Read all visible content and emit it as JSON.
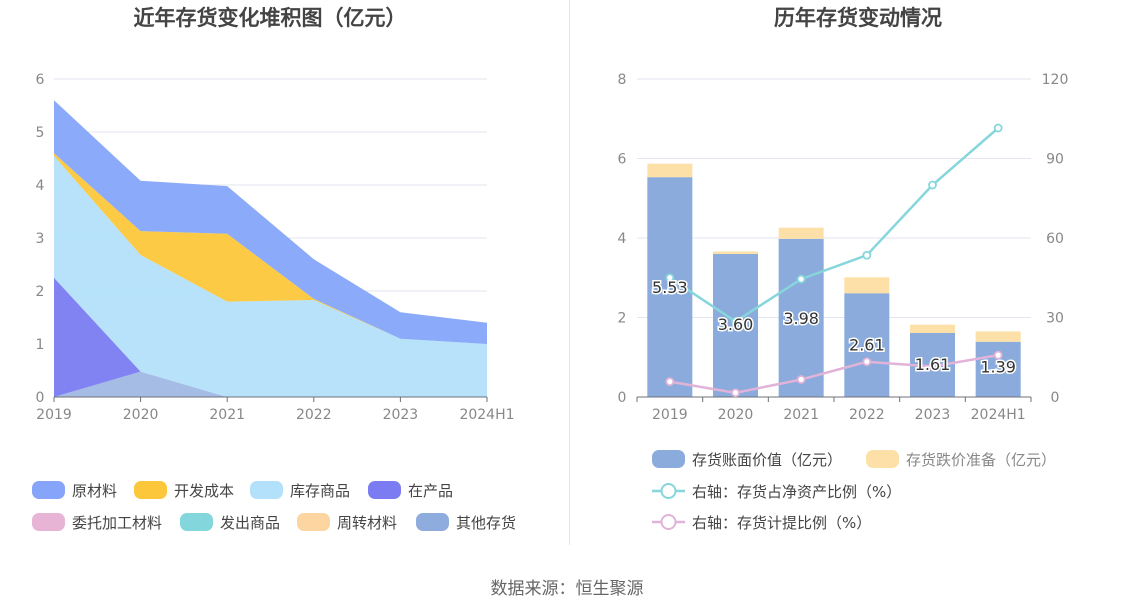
{
  "source_text": "数据来源：恒生聚源",
  "chart_data": [
    {
      "type": "area",
      "title": "近年存货变化堆积图（亿元）",
      "x": [
        "2019",
        "2020",
        "2021",
        "2022",
        "2023",
        "2024H1"
      ],
      "ylim": [
        0,
        6
      ],
      "yticks": [
        "0",
        "1",
        "2",
        "3",
        "4",
        "5",
        "6"
      ],
      "grid": true,
      "legend_position": "bottom",
      "stacked": true,
      "series": [
        {
          "name": "原材料",
          "color": "#86a5fa",
          "values": [
            1.0,
            0.95,
            0.9,
            0.75,
            0.5,
            0.4
          ]
        },
        {
          "name": "开发成本",
          "color": "#fcc73a",
          "values": [
            0.05,
            0.45,
            1.28,
            0.02,
            0,
            0
          ]
        },
        {
          "name": "库存商品",
          "color": "#b3e0fa",
          "values": [
            2.3,
            2.2,
            1.8,
            1.83,
            1.1,
            1.0
          ]
        },
        {
          "name": "在产品",
          "color": "#7b7cf2",
          "values": [
            2.25,
            0,
            0,
            0,
            0,
            0
          ]
        },
        {
          "name": "委托加工材料",
          "color": "#e8b4d6",
          "values": [
            0,
            0,
            0,
            0,
            0,
            0
          ]
        },
        {
          "name": "发出商品",
          "color": "#83d6dc",
          "values": [
            0,
            0,
            0,
            0,
            0,
            0
          ]
        },
        {
          "name": "周转材料",
          "color": "#fdd5a0",
          "values": [
            0,
            0,
            0,
            0,
            0,
            0
          ]
        },
        {
          "name": "其他存货",
          "color": "#8eadde",
          "values": [
            0,
            0.48,
            0,
            0,
            0,
            0
          ]
        }
      ]
    },
    {
      "type": "bar",
      "title": "历年存货变动情况",
      "categories": [
        "2019",
        "2020",
        "2021",
        "2022",
        "2023",
        "2024H1"
      ],
      "ylim": [
        0,
        8
      ],
      "yticks": [
        "0",
        "2",
        "4",
        "6",
        "8"
      ],
      "y2lim": [
        0,
        120
      ],
      "y2ticks": [
        "0",
        "30",
        "60",
        "90",
        "120"
      ],
      "grid": true,
      "legend_position": "bottom",
      "series": [
        {
          "name": "存货账面价值（亿元）",
          "color": "#8aabdb",
          "values": [
            5.53,
            3.6,
            3.98,
            2.61,
            1.61,
            1.39
          ],
          "labels": [
            "5.53",
            "3.60",
            "3.98",
            "2.61",
            "1.61",
            "1.39"
          ]
        },
        {
          "name": "存货跌价准备（亿元）",
          "color": "#fde0a8",
          "values": [
            0.34,
            0.06,
            0.28,
            0.4,
            0.21,
            0.26
          ]
        },
        {
          "name": "右轴：存货占净资产比例（%）",
          "color": "#86d6dc",
          "type": "line",
          "axis": "right",
          "values": [
            45.0,
            28.5,
            44.5,
            53.5,
            80.0,
            101.5
          ]
        },
        {
          "name": "右轴：存货计提比例（%）",
          "color": "#e2b3d8",
          "type": "line",
          "axis": "right",
          "values": [
            5.8,
            1.6,
            6.6,
            13.3,
            11.5,
            15.8
          ]
        }
      ]
    }
  ]
}
